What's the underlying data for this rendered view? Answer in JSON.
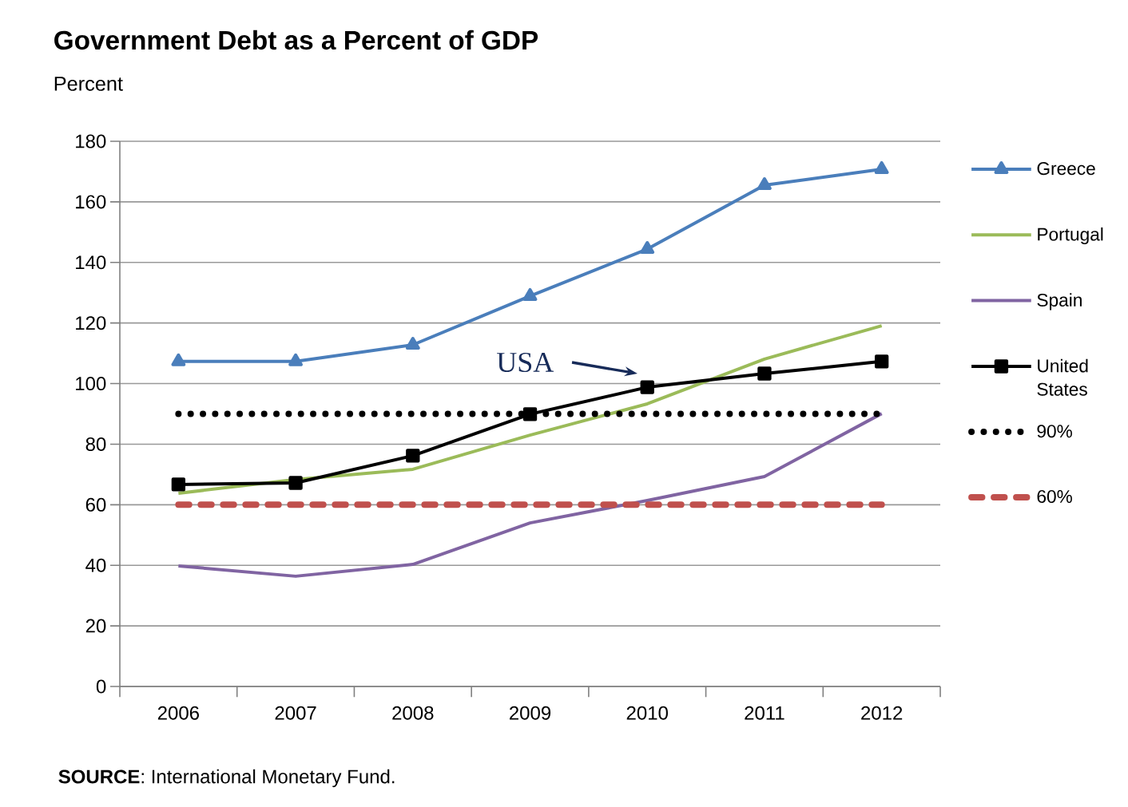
{
  "chart_data": {
    "type": "line",
    "title": "Government Debt as a Percent of GDP",
    "subtitle": "Percent",
    "categories": [
      "2006",
      "2007",
      "2008",
      "2009",
      "2010",
      "2011",
      "2012"
    ],
    "series": [
      {
        "name": "Greece",
        "color": "#4a7ebb",
        "marker": "triangle",
        "line_style": "solid",
        "values": [
          107.3,
          107.3,
          112.8,
          128.9,
          144.4,
          165.5,
          170.8
        ]
      },
      {
        "name": "Portugal",
        "color": "#9bbb59",
        "marker": "none",
        "line_style": "solid",
        "values": [
          63.8,
          68.3,
          71.7,
          83.0,
          93.3,
          108.1,
          119.1
        ]
      },
      {
        "name": "Spain",
        "color": "#8064a2",
        "marker": "none",
        "line_style": "solid",
        "values": [
          39.8,
          36.4,
          40.3,
          54.0,
          61.4,
          69.3,
          90.1
        ]
      },
      {
        "name": "United States",
        "color": "#000000",
        "marker": "square",
        "line_style": "solid",
        "values": [
          66.7,
          67.2,
          76.2,
          89.9,
          98.8,
          103.3,
          107.3
        ]
      },
      {
        "name": "90%",
        "color": "#000000",
        "marker": "none",
        "line_style": "dotted",
        "values": [
          90,
          90,
          90,
          90,
          90,
          90,
          90
        ]
      },
      {
        "name": "60%",
        "color": "#c0504d",
        "marker": "none",
        "line_style": "dashed",
        "values": [
          60,
          60,
          60,
          60,
          60,
          60,
          60
        ]
      }
    ],
    "ylim": [
      0,
      180
    ],
    "yticks": [
      0,
      20,
      40,
      60,
      80,
      100,
      120,
      140,
      160,
      180
    ],
    "grid": "y",
    "legend": "right",
    "annotations": [
      "USA",
      "**SOURCE**: International Monetary Fund."
    ]
  }
}
